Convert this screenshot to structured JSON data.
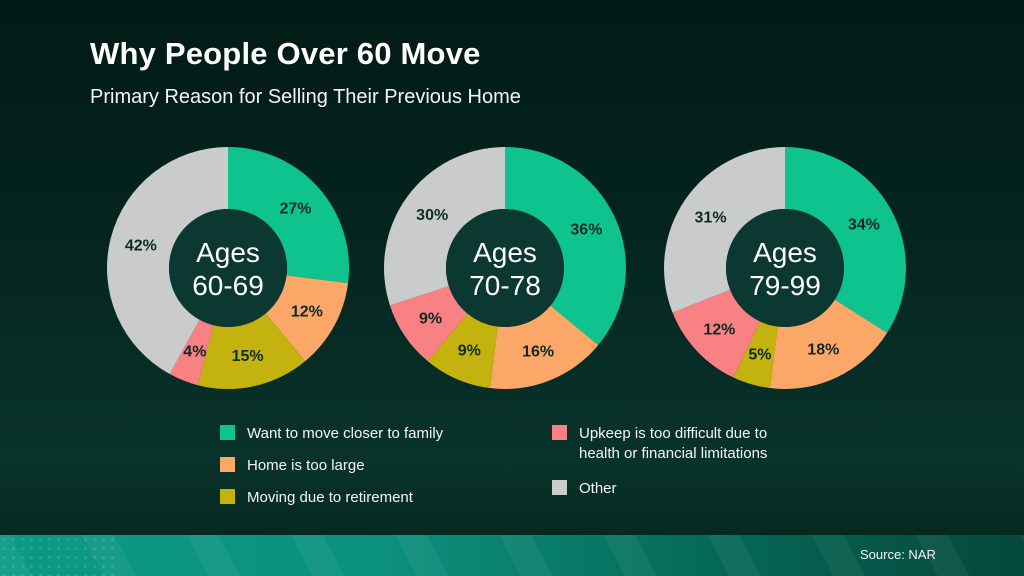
{
  "header": {
    "title": "Why People Over 60 Move",
    "subtitle": "Primary Reason for Selling Their Previous Home"
  },
  "footer": {
    "source": "Source: NAR"
  },
  "theme": {
    "background_top": "#021A15",
    "background_bottom": "#08332A",
    "footer_teal_left": "#0C9A85",
    "footer_teal_right": "#05473B",
    "donut_hole_color": "#0B3831",
    "value_label_color": "#0E2B25",
    "center_text_color": "#FFFFFF"
  },
  "chart_data": {
    "type": "pie",
    "subtype": "donut",
    "title": "Why People Over 60 Move",
    "subtitle": "Primary Reason for Selling Their Previous Home",
    "source": "NAR",
    "unit": "percent",
    "start_angle": "top",
    "direction": "clockwise",
    "legend_position": "bottom",
    "categories": [
      "Want to move closer to family",
      "Home is too large",
      "Moving due to retirement",
      "Upkeep is too difficult due to health or financial limitations",
      "Other"
    ],
    "colors": [
      "#0FC38F",
      "#FBA768",
      "#C4B30F",
      "#F98184",
      "#C9CCCB"
    ],
    "charts": [
      {
        "title": "Ages 60-69",
        "center_lines": [
          "Ages",
          "60-69"
        ],
        "values": [
          27,
          12,
          15,
          4,
          42
        ]
      },
      {
        "title": "Ages 70-78",
        "center_lines": [
          "Ages",
          "70-78"
        ],
        "values": [
          36,
          16,
          9,
          9,
          30
        ]
      },
      {
        "title": "Ages 79-99",
        "center_lines": [
          "Ages",
          "79-99"
        ],
        "values": [
          34,
          18,
          5,
          12,
          31
        ]
      }
    ]
  },
  "legend": {
    "items": [
      {
        "label": "Want to move closer to family",
        "color": "#0FC38F"
      },
      {
        "label": "Home is too large",
        "color": "#FBA768"
      },
      {
        "label": "Moving due to retirement",
        "color": "#C4B30F"
      },
      {
        "label": "Upkeep is too difficult due to health or financial limitations",
        "color": "#F98184"
      },
      {
        "label": "Other",
        "color": "#C9CCCB"
      }
    ]
  }
}
